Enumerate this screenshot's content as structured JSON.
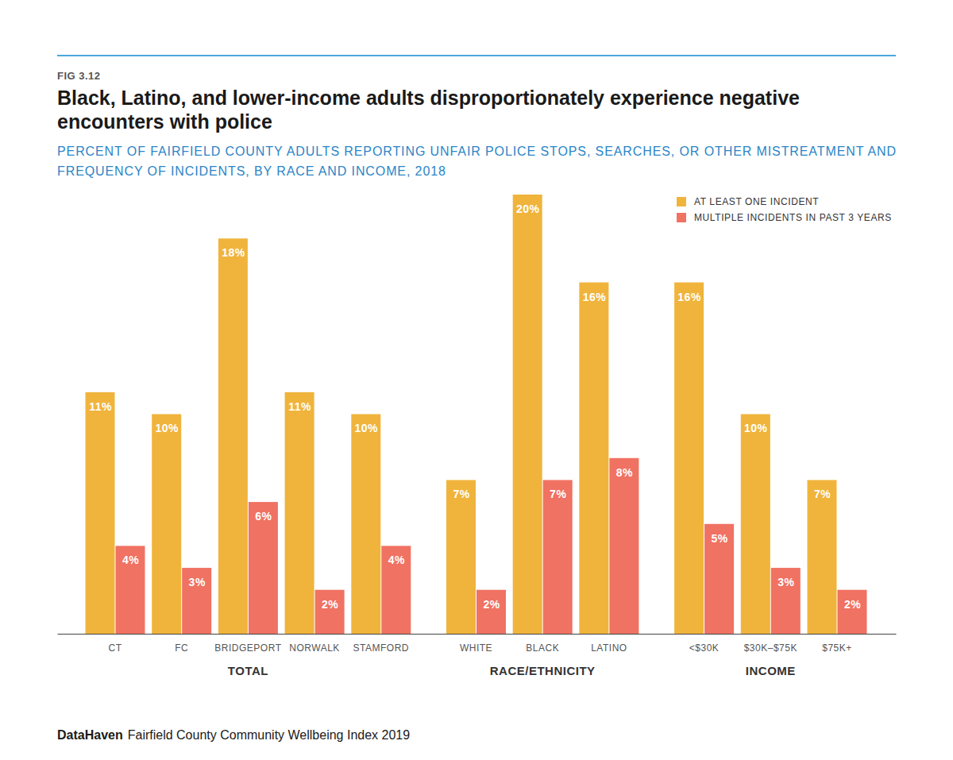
{
  "chart_data": {
    "type": "bar",
    "figure_label": "FIG 3.12",
    "title": "Black, Latino, and lower-income adults disproportionately experience negative encounters with police",
    "subtitle": "PERCENT OF FAIRFIELD COUNTY ADULTS REPORTING UNFAIR POLICE STOPS, SEARCHES, OR OTHER MISTREATMENT AND FREQUENCY OF INCIDENTS, BY RACE AND INCOME, 2018",
    "source_brand": "DataHaven",
    "source": "Fairfield County Community Wellbeing Index 2019",
    "categories": [
      "CT",
      "FC",
      "BRIDGEPORT",
      "NORWALK",
      "STAMFORD",
      "WHITE",
      "BLACK",
      "LATINO",
      "<$30K",
      "$30K–$75K",
      "$75K+"
    ],
    "category_groups": [
      "TOTAL",
      "TOTAL",
      "TOTAL",
      "TOTAL",
      "TOTAL",
      "RACE/ETHNICITY",
      "RACE/ETHNICITY",
      "RACE/ETHNICITY",
      "INCOME",
      "INCOME",
      "INCOME"
    ],
    "series": [
      {
        "name": "AT LEAST ONE INCIDENT",
        "color": "#f0b43c",
        "values": [
          11,
          10,
          18,
          11,
          10,
          7,
          20,
          16,
          16,
          10,
          7
        ],
        "value_labels": [
          "11%",
          "10%",
          "18%",
          "11%",
          "10%",
          "7%",
          "20%",
          "16%",
          "16%",
          "10%",
          "7%"
        ]
      },
      {
        "name": "MULTIPLE INCIDENTS IN PAST 3 YEARS",
        "color": "#f07262",
        "values": [
          4,
          3,
          6,
          2,
          4,
          2,
          7,
          8,
          5,
          3,
          2
        ],
        "value_labels": [
          "4%",
          "3%",
          "6%",
          "2%",
          "4%",
          "2%",
          "7%",
          "8%",
          "5%",
          "3%",
          "2%"
        ]
      }
    ],
    "ylim": [
      0,
      20
    ],
    "data_labels": true,
    "tick_labels": "x",
    "legend": "top-right"
  }
}
